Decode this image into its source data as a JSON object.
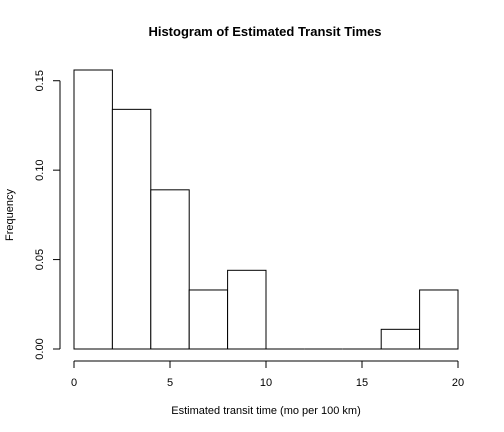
{
  "chart_data": {
    "type": "bar",
    "title": "Histogram of Estimated Transit Times",
    "xlabel": "Estimated transit time (mo per 100 km)",
    "ylabel": "Frequency",
    "bins": [
      {
        "start": 0,
        "end": 2,
        "value": 0.156
      },
      {
        "start": 2,
        "end": 4,
        "value": 0.134
      },
      {
        "start": 4,
        "end": 6,
        "value": 0.089
      },
      {
        "start": 6,
        "end": 8,
        "value": 0.033
      },
      {
        "start": 8,
        "end": 10,
        "value": 0.044
      },
      {
        "start": 10,
        "end": 12,
        "value": 0
      },
      {
        "start": 12,
        "end": 14,
        "value": 0
      },
      {
        "start": 14,
        "end": 16,
        "value": 0
      },
      {
        "start": 16,
        "end": 18,
        "value": 0.011
      },
      {
        "start": 18,
        "end": 20,
        "value": 0.033
      }
    ],
    "xlim": [
      0,
      20
    ],
    "ylim": [
      0,
      0.156
    ],
    "xticks": [
      {
        "value": 0,
        "label": "0"
      },
      {
        "value": 5,
        "label": "5"
      },
      {
        "value": 10,
        "label": "10"
      },
      {
        "value": 15,
        "label": "15"
      },
      {
        "value": 20,
        "label": "20"
      }
    ],
    "yticks": [
      {
        "value": 0,
        "label": "0.00"
      },
      {
        "value": 0.05,
        "label": "0.05"
      },
      {
        "value": 0.1,
        "label": "0.10"
      },
      {
        "value": 0.15,
        "label": "0.15"
      }
    ],
    "grid": false,
    "legend": "none",
    "bar_fill": "#ffffff",
    "bar_stroke": "#000000"
  }
}
